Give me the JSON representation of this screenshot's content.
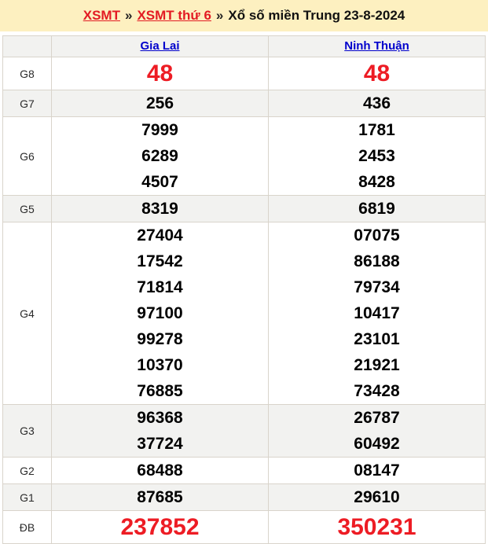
{
  "colors": {
    "topbar_background": "#fdf0c0",
    "stripe_row_background": "#f2f2f0",
    "table_border": "#d9d4cb",
    "highlight_red": "#ed1c24",
    "link_red": "#e31b23",
    "link_blue": "#0000cc",
    "number_black": "#000000"
  },
  "breadcrumb": {
    "home": "XSMT",
    "day_link": "XSMT thứ 6",
    "title": "Xổ số miền Trung 23-8-2024",
    "separator": "»"
  },
  "table": {
    "columns": [
      "Gia Lai",
      "Ninh Thuận"
    ],
    "rows": [
      {
        "prize": "G8",
        "highlight": true,
        "cells": [
          [
            "48"
          ],
          [
            "48"
          ]
        ]
      },
      {
        "prize": "G7",
        "highlight": false,
        "cells": [
          [
            "256"
          ],
          [
            "436"
          ]
        ]
      },
      {
        "prize": "G6",
        "highlight": false,
        "cells": [
          [
            "7999",
            "6289",
            "4507"
          ],
          [
            "1781",
            "2453",
            "8428"
          ]
        ]
      },
      {
        "prize": "G5",
        "highlight": false,
        "cells": [
          [
            "8319"
          ],
          [
            "6819"
          ]
        ]
      },
      {
        "prize": "G4",
        "highlight": false,
        "cells": [
          [
            "27404",
            "17542",
            "71814",
            "97100",
            "99278",
            "10370",
            "76885"
          ],
          [
            "07075",
            "86188",
            "79734",
            "10417",
            "23101",
            "21921",
            "73428"
          ]
        ]
      },
      {
        "prize": "G3",
        "highlight": false,
        "cells": [
          [
            "96368",
            "37724"
          ],
          [
            "26787",
            "60492"
          ]
        ]
      },
      {
        "prize": "G2",
        "highlight": false,
        "cells": [
          [
            "68488"
          ],
          [
            "08147"
          ]
        ]
      },
      {
        "prize": "G1",
        "highlight": false,
        "cells": [
          [
            "87685"
          ],
          [
            "29610"
          ]
        ]
      },
      {
        "prize": "ĐB",
        "highlight": true,
        "cells": [
          [
            "237852"
          ],
          [
            "350231"
          ]
        ]
      }
    ]
  }
}
